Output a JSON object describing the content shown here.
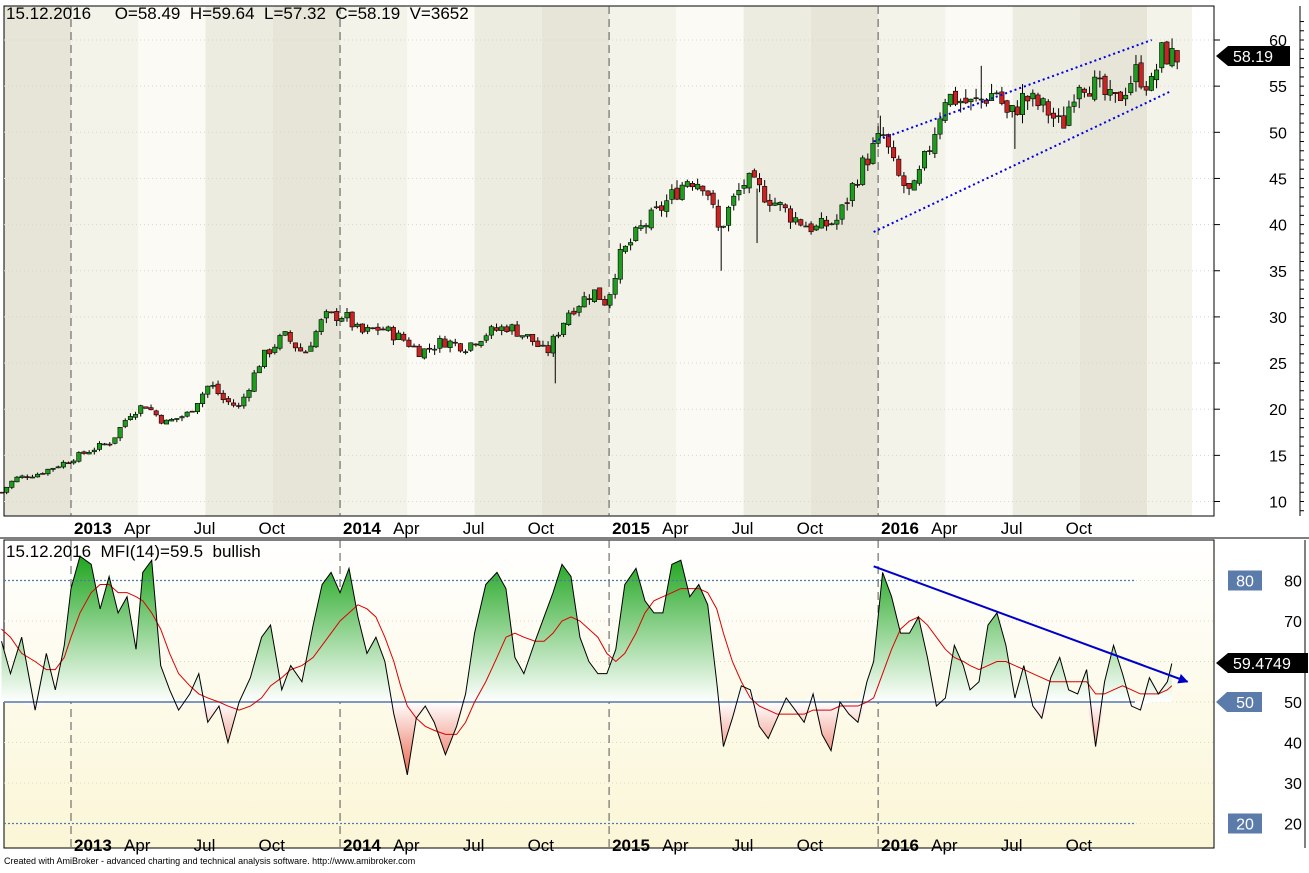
{
  "footer": "Created with AmiBroker - advanced charting and technical analysis software. http://www.amibroker.com",
  "colors": {
    "up_candle": "#1e9c1e",
    "down_candle": "#cc2222",
    "wick": "#000000",
    "channel_line": "#0000dd",
    "trend_arrow": "#0000cc",
    "mfi_line": "#000000",
    "mfi_ma_line": "#dd0000",
    "bullish_fill": "#2fb52f",
    "bearish_fill": "#ee7755",
    "level_box": "#5b7baa",
    "price_marker_bg": "#000000"
  },
  "chart_data": [
    {
      "type": "candlestick",
      "header": "15.12.2016     O=58.49  H=59.64  L=57.32  C=58.19  V=3652",
      "last_price_label": "58.19",
      "last_price": 58.19,
      "ylim": [
        8,
        63
      ],
      "y_ticks": [
        10,
        15,
        20,
        25,
        30,
        35,
        40,
        45,
        50,
        55,
        60
      ],
      "x_tick_labels": [
        {
          "t": 12,
          "label": "2013",
          "bold": true
        },
        {
          "t": 15,
          "label": "Apr",
          "bold": false
        },
        {
          "t": 18,
          "label": "Jul",
          "bold": false
        },
        {
          "t": 21,
          "label": "Oct",
          "bold": false
        },
        {
          "t": 24,
          "label": "2014",
          "bold": true
        },
        {
          "t": 27,
          "label": "Apr",
          "bold": false
        },
        {
          "t": 30,
          "label": "Jul",
          "bold": false
        },
        {
          "t": 33,
          "label": "Oct",
          "bold": false
        },
        {
          "t": 36,
          "label": "2015",
          "bold": true
        },
        {
          "t": 39,
          "label": "Apr",
          "bold": false
        },
        {
          "t": 42,
          "label": "Jul",
          "bold": false
        },
        {
          "t": 45,
          "label": "Oct",
          "bold": false
        },
        {
          "t": 48,
          "label": "2016",
          "bold": true
        },
        {
          "t": 51,
          "label": "Apr",
          "bold": false
        },
        {
          "t": 54,
          "label": "Jul",
          "bold": false
        },
        {
          "t": 57,
          "label": "Oct",
          "bold": false
        }
      ],
      "year_starts": [
        12,
        24,
        36,
        48
      ],
      "time_range": [
        8.9,
        61.5
      ],
      "channel_lines": [
        {
          "from": [
            47.8,
            49
          ],
          "to": [
            60.2,
            60
          ]
        },
        {
          "from": [
            47.8,
            39.2
          ],
          "to": [
            61.1,
            54.5
          ]
        }
      ],
      "candle_path": [
        [
          8.9,
          11
        ],
        [
          9.5,
          12.5
        ],
        [
          10.5,
          13
        ],
        [
          11.5,
          14
        ],
        [
          12.8,
          15.5
        ],
        [
          13.8,
          16.5
        ],
        [
          14.6,
          19.5
        ],
        [
          15.3,
          20.5
        ],
        [
          16.2,
          18.5
        ],
        [
          17.2,
          19.5
        ],
        [
          18.2,
          22.8
        ],
        [
          18.8,
          21
        ],
        [
          19.5,
          20.2
        ],
        [
          20.5,
          25.5
        ],
        [
          21.5,
          28
        ],
        [
          22.4,
          26
        ],
        [
          23.3,
          30
        ],
        [
          24.2,
          30.2
        ],
        [
          24.9,
          28.2
        ],
        [
          25.8,
          28.8
        ],
        [
          26.8,
          27.6
        ],
        [
          27.6,
          26.2
        ],
        [
          28.6,
          27.4
        ],
        [
          29.6,
          26.8
        ],
        [
          30.5,
          28.2
        ],
        [
          31.5,
          29
        ],
        [
          32.5,
          27.6
        ],
        [
          33.2,
          26
        ],
        [
          34.2,
          30.6
        ],
        [
          35.3,
          32.8
        ],
        [
          35.9,
          31.5
        ],
        [
          36.4,
          36.2
        ],
        [
          37.4,
          39.5
        ],
        [
          38.4,
          42
        ],
        [
          39.5,
          45
        ],
        [
          40.3,
          44.5
        ],
        [
          40.9,
          39.2
        ],
        [
          41.4,
          42
        ],
        [
          42.1,
          44.8
        ],
        [
          43.1,
          43
        ],
        [
          44.2,
          40.8
        ],
        [
          45.2,
          39.5
        ],
        [
          46.2,
          40.5
        ],
        [
          47.2,
          46
        ],
        [
          48.2,
          49.8
        ],
        [
          48.8,
          45.5
        ],
        [
          49.5,
          43
        ],
        [
          50.3,
          48.5
        ],
        [
          51,
          54
        ],
        [
          52.2,
          53
        ],
        [
          53.3,
          54.5
        ],
        [
          53.8,
          51.5
        ],
        [
          54.5,
          53.8
        ],
        [
          55.5,
          52.5
        ],
        [
          56.2,
          50.5
        ],
        [
          56.9,
          55.8
        ],
        [
          57.8,
          54.8
        ],
        [
          58.5,
          53
        ],
        [
          59.5,
          56.5
        ],
        [
          60.2,
          55
        ],
        [
          60.6,
          58.6
        ],
        [
          61.1,
          58.19
        ]
      ],
      "wick_spikes": [
        {
          "t": 33.6,
          "low": 22.8
        },
        {
          "t": 41.0,
          "low": 35.0
        },
        {
          "t": 42.6,
          "low": 38.0
        },
        {
          "t": 48.1,
          "high": 51.8
        },
        {
          "t": 52.6,
          "high": 57.2
        },
        {
          "t": 54.1,
          "low": 48.2
        }
      ]
    },
    {
      "type": "area",
      "header": "15.12.2016  MFI(14)=59.5  bullish",
      "value_label": "59.4749",
      "last_value": 59.4749,
      "ylim": [
        18,
        88
      ],
      "y_ticks": [
        20,
        30,
        40,
        50,
        60,
        70,
        80
      ],
      "levels": [
        {
          "value": 80,
          "label": "80"
        },
        {
          "value": 50,
          "label": "50"
        },
        {
          "value": 20,
          "label": "20"
        }
      ],
      "x_tick_labels": [
        {
          "t": 12,
          "label": "2013",
          "bold": true
        },
        {
          "t": 15,
          "label": "Apr",
          "bold": false
        },
        {
          "t": 18,
          "label": "Jul",
          "bold": false
        },
        {
          "t": 21,
          "label": "Oct",
          "bold": false
        },
        {
          "t": 24,
          "label": "2014",
          "bold": true
        },
        {
          "t": 27,
          "label": "Apr",
          "bold": false
        },
        {
          "t": 30,
          "label": "Jul",
          "bold": false
        },
        {
          "t": 33,
          "label": "Oct",
          "bold": false
        },
        {
          "t": 36,
          "label": "2015",
          "bold": true
        },
        {
          "t": 39,
          "label": "Apr",
          "bold": false
        },
        {
          "t": 42,
          "label": "Jul",
          "bold": false
        },
        {
          "t": 45,
          "label": "Oct",
          "bold": false
        },
        {
          "t": 48,
          "label": "2016",
          "bold": true
        },
        {
          "t": 51,
          "label": "Apr",
          "bold": false
        },
        {
          "t": 54,
          "label": "Jul",
          "bold": false
        },
        {
          "t": 57,
          "label": "Oct",
          "bold": false
        }
      ],
      "trendline": {
        "from": [
          47.8,
          83.5
        ],
        "to": [
          61.8,
          55
        ]
      },
      "t": [
        8.9,
        9.3,
        9.8,
        10.4,
        10.9,
        11.3,
        11.7,
        12.0,
        12.4,
        12.9,
        13.3,
        13.7,
        14.1,
        14.5,
        14.9,
        15.2,
        15.6,
        16.0,
        16.4,
        16.8,
        17.3,
        17.7,
        18.1,
        18.6,
        19.0,
        19.5,
        20.0,
        20.5,
        20.9,
        21.4,
        21.8,
        22.3,
        22.8,
        23.2,
        23.6,
        24.0,
        24.4,
        24.8,
        25.2,
        25.6,
        26.0,
        26.4,
        26.7,
        27.0,
        27.4,
        27.8,
        28.2,
        28.7,
        29.2,
        29.6,
        30.0,
        30.5,
        31.0,
        31.4,
        31.8,
        32.2,
        32.7,
        33.1,
        33.5,
        33.9,
        34.3,
        34.7,
        35.1,
        35.5,
        35.9,
        36.3,
        36.7,
        37.2,
        37.6,
        38.0,
        38.4,
        38.8,
        39.2,
        39.6,
        40.0,
        40.4,
        40.8,
        41.1,
        41.5,
        41.9,
        42.3,
        42.7,
        43.1,
        43.5,
        43.9,
        44.3,
        44.7,
        45.1,
        45.5,
        45.9,
        46.3,
        46.7,
        47.1,
        47.5,
        47.8,
        48.2,
        48.6,
        49.0,
        49.4,
        49.8,
        50.2,
        50.6,
        51.0,
        51.4,
        51.8,
        52.1,
        52.5,
        52.9,
        53.3,
        53.7,
        54.1,
        54.5,
        54.9,
        55.3,
        55.7,
        56.1,
        56.5,
        56.9,
        57.3,
        57.7,
        58.1,
        58.5,
        58.9,
        59.3,
        59.7,
        60.1,
        60.5,
        60.9,
        61.1
      ],
      "mfi": [
        65,
        57,
        66,
        48,
        62,
        53,
        64,
        78,
        86,
        84,
        73,
        81,
        72,
        76,
        63,
        82,
        85,
        59,
        53,
        48,
        52,
        57,
        45,
        49,
        40,
        50,
        56,
        66,
        69,
        53,
        59,
        55,
        69,
        79,
        82,
        77,
        83,
        71,
        62,
        66,
        60,
        47,
        40,
        32,
        46,
        49,
        45,
        37,
        44,
        52,
        67,
        79,
        82,
        78,
        61,
        57,
        65,
        71,
        77,
        84,
        81,
        66,
        60,
        57,
        57,
        63,
        79,
        83,
        75,
        72,
        72,
        84,
        85,
        76,
        79,
        74,
        55,
        39,
        46,
        54,
        53,
        44,
        41,
        46,
        51,
        48,
        45,
        52,
        42,
        38,
        50,
        47,
        45,
        55,
        60,
        82,
        76,
        67,
        67,
        71,
        61,
        49,
        51,
        64,
        59,
        53,
        55,
        69,
        72,
        64,
        51,
        59,
        49,
        46,
        56,
        61,
        53,
        52,
        58,
        39,
        55,
        64,
        57,
        49,
        48,
        56,
        52,
        55,
        59.5
      ],
      "mfi_ma": [
        68,
        66,
        62,
        60,
        58,
        58,
        61,
        66,
        72,
        77,
        79,
        79,
        77,
        77,
        76,
        75,
        72,
        68,
        62,
        57,
        54,
        52,
        51,
        50,
        49,
        48,
        49,
        51,
        54,
        56,
        58,
        59,
        61,
        64,
        67,
        70,
        72,
        74,
        73,
        71,
        66,
        60,
        54,
        49,
        46,
        44,
        43,
        42,
        42,
        45,
        50,
        55,
        61,
        66,
        67,
        66,
        65,
        65,
        67,
        70,
        71,
        70,
        68,
        66,
        62,
        60,
        62,
        67,
        72,
        75,
        76,
        77,
        78,
        78,
        78,
        77,
        73,
        67,
        60,
        55,
        51,
        49,
        48,
        47,
        47,
        47,
        47,
        48,
        48,
        48,
        49,
        49,
        49,
        50,
        51,
        57,
        63,
        68,
        70,
        71,
        69,
        66,
        63,
        61,
        60,
        59,
        58,
        59,
        60,
        60,
        59,
        58,
        57,
        56,
        55,
        55,
        55,
        55,
        55,
        52,
        52,
        53,
        54,
        53,
        52,
        52,
        52,
        53,
        54
      ]
    }
  ]
}
